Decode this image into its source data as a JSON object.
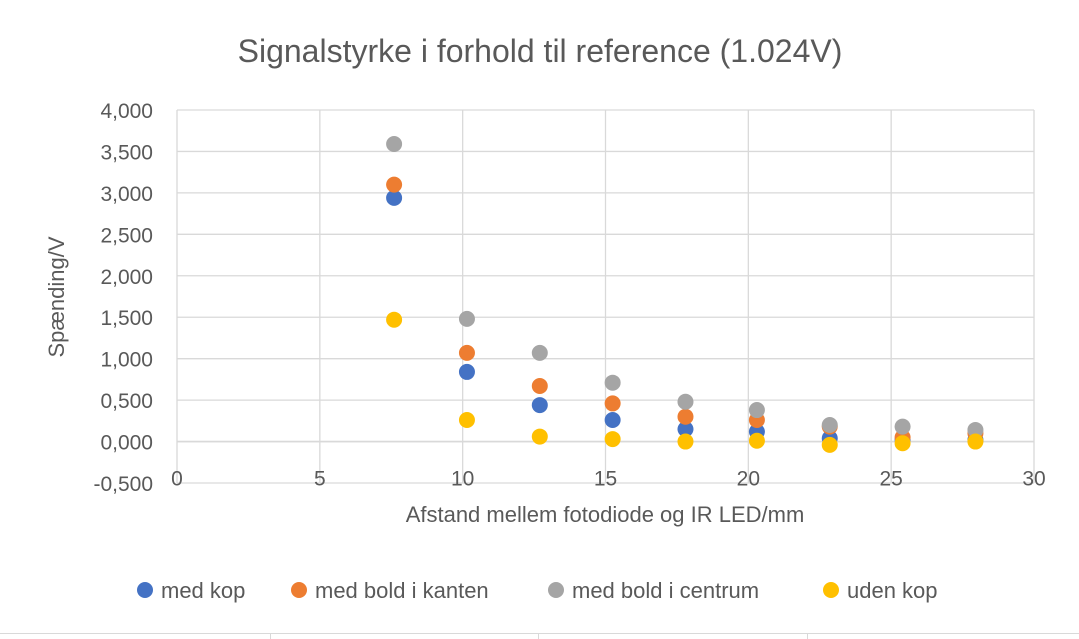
{
  "colors": {
    "grid": "#d9d9d9",
    "text": "#595959",
    "med_kop": "#4472C4",
    "med_bold_i_kanten": "#ED7D31",
    "med_bold_i_centrum": "#A5A5A5",
    "uden_kop": "#FFC000"
  },
  "chart_data": {
    "type": "scatter",
    "title": "Signalstyrke i forhold til reference (1.024V)",
    "xlabel": "Afstand mellem fotodiode og IR LED/mm",
    "ylabel": "Spænding/V",
    "xlim": [
      0,
      30
    ],
    "ylim": [
      -0.5,
      4.0
    ],
    "x_ticks": [
      "0",
      "5",
      "10",
      "15",
      "20",
      "25",
      "30"
    ],
    "y_ticks": [
      "-0,500",
      "0,000",
      "0,500",
      "1,000",
      "1,500",
      "2,000",
      "2,500",
      "3,000",
      "3,500",
      "4,000"
    ],
    "grid": true,
    "legend_position": "bottom",
    "x": [
      7.6,
      10.15,
      12.7,
      15.25,
      17.8,
      20.3,
      22.85,
      25.4,
      27.95
    ],
    "series": [
      {
        "name": "med kop",
        "color_key": "med_kop",
        "values": [
          2.94,
          0.84,
          0.44,
          0.26,
          0.15,
          0.12,
          0.04,
          0.02,
          0.02
        ]
      },
      {
        "name": "med bold i kanten",
        "color_key": "med_bold_i_kanten",
        "values": [
          3.1,
          1.07,
          0.67,
          0.46,
          0.3,
          0.26,
          0.18,
          0.05,
          0.1
        ]
      },
      {
        "name": "med bold i centrum",
        "color_key": "med_bold_i_centrum",
        "values": [
          3.59,
          1.48,
          1.07,
          0.71,
          0.48,
          0.38,
          0.2,
          0.18,
          0.14
        ]
      },
      {
        "name": "uden kop",
        "color_key": "uden_kop",
        "values": [
          1.47,
          0.26,
          0.06,
          0.03,
          0.0,
          0.01,
          -0.04,
          -0.02,
          0.0
        ]
      }
    ]
  }
}
